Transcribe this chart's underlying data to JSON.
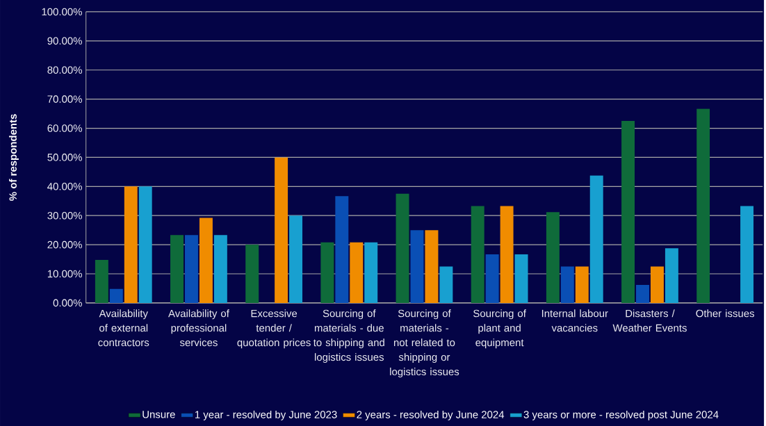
{
  "chart_data": {
    "type": "bar",
    "ylabel": "% of respondents",
    "categories": [
      "Availability of external contractors",
      "Availability of professional services",
      "Excessive tender / quotation prices",
      "Sourcing of materials - due to shipping and logistics issues",
      "Sourcing of materials - not related to shipping or logistics issues",
      "Sourcing of plant and equipment",
      "Internal labour vacancies",
      "Disasters / Weather Events",
      "Other issues"
    ],
    "series": [
      {
        "name": "Unsure",
        "color": "#0f6b3a",
        "values": [
          14.8,
          23.3,
          20,
          20.8,
          37.5,
          33.3,
          31.2,
          62.5,
          66.7
        ]
      },
      {
        "name": "1 year - resolved by June 2023",
        "color": "#0a4fb5",
        "values": [
          4.8,
          23.3,
          null,
          36.7,
          25,
          16.7,
          12.5,
          6.2,
          null
        ]
      },
      {
        "name": "2 years - resolved by June 2024",
        "color": "#f08c00",
        "values": [
          40,
          29.2,
          50,
          20.8,
          25,
          33.3,
          12.5,
          12.5,
          null
        ]
      },
      {
        "name": "3 years or more - resolved post June 2024",
        "color": "#18a0d0",
        "values": [
          40,
          23.3,
          30,
          20.8,
          12.5,
          16.7,
          43.8,
          18.8,
          33.3
        ]
      }
    ],
    "ylim": [
      0,
      100
    ],
    "yticks": [
      {
        "value": 0,
        "label": "0.00%"
      },
      {
        "value": 10,
        "label": "10.00%"
      },
      {
        "value": 20,
        "label": "20.00%"
      },
      {
        "value": 30,
        "label": "30.00%"
      },
      {
        "value": 40,
        "label": "40.00%"
      },
      {
        "value": 50,
        "label": "50.00%"
      },
      {
        "value": 60,
        "label": "60.00%"
      },
      {
        "value": 70,
        "label": "70.00%"
      },
      {
        "value": 80,
        "label": "80.00%"
      },
      {
        "value": 90,
        "label": "90.00%"
      },
      {
        "value": 100,
        "label": "100.00%"
      }
    ],
    "grid": "y",
    "legend": "bottom"
  }
}
